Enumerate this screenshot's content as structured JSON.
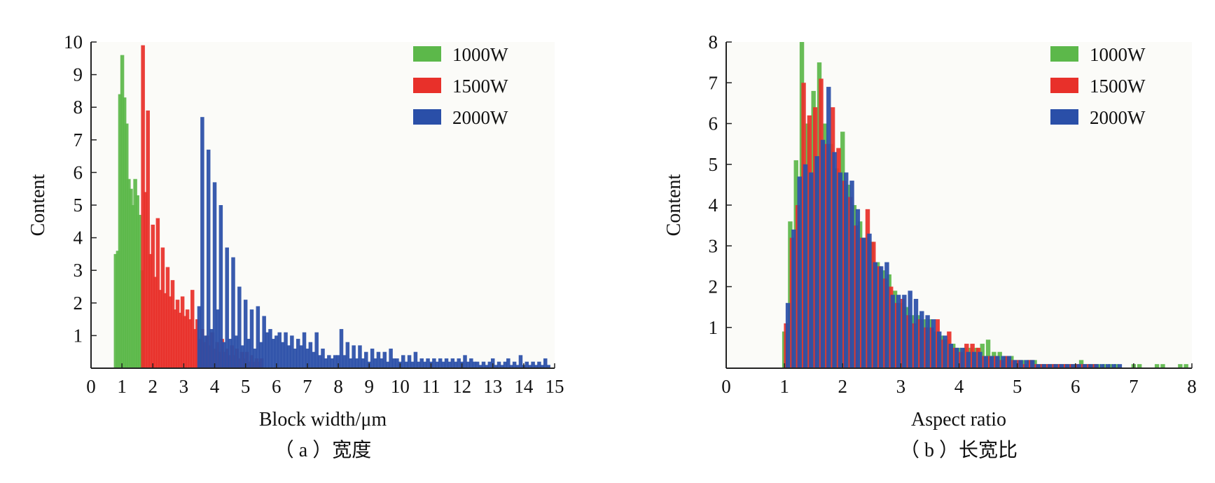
{
  "chart_data": [
    {
      "type": "bar",
      "title": "",
      "caption": "（ a ）宽度",
      "xlabel": "Block width/μm",
      "ylabel": "Content",
      "xlim": [
        0,
        15
      ],
      "ylim": [
        0,
        10
      ],
      "xticks": [
        "0",
        "1",
        "2",
        "3",
        "4",
        "5",
        "6",
        "7",
        "8",
        "9",
        "10",
        "11",
        "12",
        "13",
        "14",
        "15"
      ],
      "yticks": [
        "1",
        "2",
        "3",
        "4",
        "5",
        "6",
        "7",
        "8",
        "9",
        "10"
      ],
      "xtick_values": [
        0,
        1,
        2,
        3,
        4,
        5,
        6,
        7,
        8,
        9,
        10,
        11,
        12,
        13,
        14,
        15
      ],
      "ytick_values": [
        1,
        2,
        3,
        4,
        5,
        6,
        7,
        8,
        9,
        10
      ],
      "legend_position": "top-right",
      "grid": false,
      "series": [
        {
          "name": "1000W",
          "color": "#5cb84a",
          "x": [
            0.8,
            0.87,
            0.94,
            1.01,
            1.08,
            1.15,
            1.22,
            1.29,
            1.36,
            1.43,
            1.5,
            1.57,
            1.64
          ],
          "values": [
            3.5,
            3.6,
            8.4,
            9.6,
            8.3,
            7.5,
            5.8,
            5.5,
            5.0,
            5.8,
            5.3,
            4.7,
            3.0
          ]
        },
        {
          "name": "1500W",
          "color": "#e8302a",
          "x": [
            1.68,
            1.76,
            1.84,
            1.92,
            2.0,
            2.08,
            2.16,
            2.24,
            2.32,
            2.4,
            2.48,
            2.56,
            2.64,
            2.72,
            2.8,
            2.88,
            2.96,
            3.04,
            3.12,
            3.2,
            3.28,
            3.36,
            3.44,
            3.52,
            3.6,
            3.68,
            3.76,
            3.84,
            3.92,
            4.0,
            4.08,
            4.16,
            4.24,
            4.32,
            4.4,
            4.48,
            4.56,
            4.64,
            4.72,
            4.8,
            4.88,
            4.96,
            5.04,
            5.12,
            5.2,
            5.28,
            5.36,
            5.44,
            5.52
          ],
          "values": [
            9.9,
            5.4,
            7.9,
            3.5,
            4.4,
            2.8,
            4.6,
            2.4,
            3.7,
            2.3,
            3.1,
            2.2,
            2.7,
            1.8,
            2.1,
            1.7,
            2.2,
            1.6,
            1.8,
            1.5,
            2.4,
            1.2,
            1.5,
            0.9,
            1.2,
            0.8,
            1.0,
            0.7,
            1.1,
            0.6,
            0.8,
            0.5,
            0.9,
            0.5,
            0.6,
            0.4,
            0.7,
            0.4,
            0.6,
            0.3,
            0.5,
            0.3,
            0.5,
            0.2,
            0.4,
            0.2,
            0.3,
            0.2,
            0.3
          ]
        },
        {
          "name": "2000W",
          "color": "#2a4fa8",
          "x": [
            3.5,
            3.6,
            3.7,
            3.8,
            3.9,
            4.0,
            4.1,
            4.2,
            4.3,
            4.4,
            4.5,
            4.6,
            4.7,
            4.8,
            4.9,
            5.0,
            5.1,
            5.2,
            5.3,
            5.4,
            5.5,
            5.6,
            5.7,
            5.8,
            5.9,
            6.0,
            6.1,
            6.2,
            6.3,
            6.4,
            6.5,
            6.6,
            6.7,
            6.8,
            6.9,
            7.0,
            7.1,
            7.2,
            7.3,
            7.4,
            7.5,
            7.6,
            7.7,
            7.8,
            7.9,
            8.0,
            8.1,
            8.2,
            8.3,
            8.4,
            8.5,
            8.6,
            8.7,
            8.8,
            8.9,
            9.0,
            9.1,
            9.2,
            9.3,
            9.4,
            9.5,
            9.6,
            9.7,
            9.8,
            9.9,
            10.0,
            10.1,
            10.2,
            10.3,
            10.4,
            10.5,
            10.6,
            10.7,
            10.8,
            10.9,
            11.0,
            11.1,
            11.2,
            11.3,
            11.4,
            11.5,
            11.6,
            11.7,
            11.8,
            11.9,
            12.0,
            12.1,
            12.2,
            12.3,
            12.4,
            12.5,
            12.6,
            12.7,
            12.8,
            12.9,
            13.0,
            13.1,
            13.2,
            13.3,
            13.4,
            13.5,
            13.6,
            13.7,
            13.8,
            13.9,
            14.0,
            14.1,
            14.2,
            14.3,
            14.4,
            14.5,
            14.6,
            14.7,
            14.8
          ],
          "values": [
            1.9,
            7.7,
            1.0,
            6.7,
            1.2,
            5.7,
            1.8,
            5.0,
            0.8,
            3.7,
            0.9,
            3.4,
            1.0,
            2.5,
            0.7,
            2.1,
            0.9,
            1.8,
            0.6,
            1.9,
            0.8,
            1.6,
            1.1,
            1.2,
            0.9,
            1.0,
            1.1,
            0.8,
            1.1,
            0.7,
            1.0,
            0.6,
            0.9,
            0.7,
            1.1,
            0.6,
            0.8,
            0.5,
            1.1,
            0.4,
            0.6,
            0.3,
            0.4,
            0.3,
            0.4,
            0.4,
            1.2,
            0.4,
            0.8,
            0.3,
            0.7,
            0.3,
            0.7,
            0.3,
            0.5,
            0.2,
            0.6,
            0.3,
            0.5,
            0.3,
            0.5,
            0.2,
            0.6,
            0.3,
            0.3,
            0.2,
            0.4,
            0.2,
            0.4,
            0.2,
            0.5,
            0.2,
            0.3,
            0.2,
            0.3,
            0.2,
            0.3,
            0.2,
            0.3,
            0.2,
            0.3,
            0.2,
            0.3,
            0.2,
            0.3,
            0.2,
            0.4,
            0.2,
            0.3,
            0.2,
            0.2,
            0.1,
            0.2,
            0.1,
            0.2,
            0.3,
            0.1,
            0.2,
            0.1,
            0.2,
            0.3,
            0.1,
            0.2,
            0.1,
            0.4,
            0.1,
            0.2,
            0.1,
            0.2,
            0.1,
            0.2,
            0.1,
            0.3,
            0.1
          ]
        }
      ]
    },
    {
      "type": "bar",
      "title": "",
      "caption": "（ b ）长宽比",
      "xlabel": "Aspect ratio",
      "ylabel": "Content",
      "xlim": [
        0,
        8
      ],
      "ylim": [
        0,
        8
      ],
      "xticks": [
        "0",
        "1",
        "2",
        "3",
        "4",
        "5",
        "6",
        "7",
        "8"
      ],
      "yticks": [
        "1",
        "2",
        "3",
        "4",
        "5",
        "6",
        "7",
        "8"
      ],
      "xtick_values": [
        0,
        1,
        2,
        3,
        4,
        5,
        6,
        7,
        8
      ],
      "ytick_values": [
        1,
        2,
        3,
        4,
        5,
        6,
        7,
        8
      ],
      "legend_position": "top-right",
      "grid": false,
      "series": [
        {
          "name": "1000W",
          "color": "#5cb84a",
          "x": [
            1.0,
            1.1,
            1.2,
            1.3,
            1.4,
            1.5,
            1.6,
            1.7,
            1.8,
            1.9,
            2.0,
            2.1,
            2.2,
            2.3,
            2.4,
            2.5,
            2.6,
            2.7,
            2.8,
            2.9,
            3.0,
            3.1,
            3.2,
            3.3,
            3.4,
            3.5,
            3.6,
            3.7,
            3.8,
            3.9,
            4.0,
            4.1,
            4.2,
            4.3,
            4.4,
            4.5,
            4.6,
            4.7,
            4.8,
            4.9,
            5.0,
            5.1,
            5.2,
            5.3,
            5.4,
            5.5,
            5.6,
            5.7,
            5.8,
            5.9,
            6.0,
            6.1,
            6.2,
            6.3,
            6.4,
            6.5,
            6.6,
            6.7,
            6.8,
            6.9,
            7.0,
            7.1,
            7.2,
            7.3,
            7.4,
            7.5,
            7.6,
            7.7,
            7.8,
            7.9
          ],
          "values": [
            0.9,
            3.6,
            5.1,
            8.0,
            6.0,
            6.8,
            7.5,
            6.0,
            5.5,
            4.9,
            5.8,
            4.5,
            4.0,
            3.6,
            3.2,
            3.1,
            2.6,
            2.4,
            2.3,
            1.9,
            1.6,
            1.5,
            1.3,
            1.3,
            1.2,
            1.2,
            0.9,
            0.8,
            0.7,
            0.6,
            0.5,
            0.5,
            0.5,
            0.5,
            0.6,
            0.7,
            0.4,
            0.4,
            0.3,
            0.3,
            0.2,
            0.2,
            0.2,
            0.2,
            0.1,
            0.1,
            0.1,
            0.1,
            0.1,
            0.1,
            0.1,
            0.2,
            0.1,
            0.1,
            0.1,
            0.1,
            0.1,
            0.1,
            0.0,
            0.0,
            0.1,
            0.1,
            0.0,
            0.0,
            0.1,
            0.1,
            0.0,
            0.0,
            0.1,
            0.1
          ]
        },
        {
          "name": "1500W",
          "color": "#e8302a",
          "x": [
            1.03,
            1.13,
            1.23,
            1.33,
            1.43,
            1.53,
            1.63,
            1.73,
            1.83,
            1.93,
            2.03,
            2.13,
            2.23,
            2.33,
            2.43,
            2.53,
            2.63,
            2.73,
            2.83,
            2.93,
            3.03,
            3.13,
            3.23,
            3.33,
            3.43,
            3.53,
            3.63,
            3.73,
            3.83,
            3.93,
            4.03,
            4.13,
            4.23,
            4.33,
            4.43,
            4.53,
            4.63,
            4.73,
            4.83,
            4.93,
            5.03,
            5.13,
            5.23,
            5.33,
            5.43,
            5.53,
            5.63,
            5.73,
            5.83,
            5.93,
            6.03,
            6.13,
            6.23,
            6.33
          ],
          "values": [
            1.1,
            3.2,
            4.0,
            7.0,
            6.2,
            6.4,
            7.1,
            5.5,
            6.4,
            5.4,
            4.6,
            4.2,
            3.5,
            3.2,
            3.9,
            3.1,
            2.5,
            2.2,
            2.0,
            1.6,
            1.7,
            1.3,
            1.1,
            1.2,
            1.0,
            1.0,
            1.2,
            0.7,
            0.9,
            0.5,
            0.4,
            0.6,
            0.6,
            0.5,
            0.3,
            0.3,
            0.3,
            0.2,
            0.3,
            0.2,
            0.2,
            0.1,
            0.2,
            0.1,
            0.1,
            0.1,
            0.1,
            0.1,
            0.1,
            0.1,
            0.1,
            0.1,
            0.1,
            0.1
          ]
        },
        {
          "name": "2000W",
          "color": "#2a4fa8",
          "x": [
            1.06,
            1.16,
            1.26,
            1.36,
            1.46,
            1.56,
            1.66,
            1.76,
            1.86,
            1.96,
            2.06,
            2.16,
            2.26,
            2.36,
            2.46,
            2.56,
            2.66,
            2.76,
            2.86,
            2.96,
            3.06,
            3.16,
            3.26,
            3.36,
            3.46,
            3.56,
            3.66,
            3.76,
            3.86,
            3.96,
            4.06,
            4.16,
            4.26,
            4.36,
            4.46,
            4.56,
            4.66,
            4.76,
            4.86,
            4.96,
            5.06,
            5.16,
            5.26,
            5.36,
            5.46,
            5.56,
            5.66,
            5.76,
            5.86,
            5.96,
            6.06,
            6.16,
            6.26,
            6.36,
            6.46,
            6.56,
            6.66,
            6.76
          ],
          "values": [
            1.6,
            3.4,
            4.7,
            5.0,
            4.8,
            5.2,
            5.6,
            6.9,
            5.3,
            4.8,
            4.8,
            4.6,
            3.9,
            3.2,
            3.3,
            2.6,
            2.5,
            2.6,
            1.8,
            1.8,
            1.8,
            1.9,
            1.7,
            1.4,
            1.3,
            1.2,
            0.9,
            0.8,
            0.6,
            0.5,
            0.5,
            0.4,
            0.4,
            0.4,
            0.3,
            0.3,
            0.3,
            0.3,
            0.3,
            0.2,
            0.2,
            0.2,
            0.2,
            0.1,
            0.1,
            0.1,
            0.1,
            0.1,
            0.1,
            0.1,
            0.1,
            0.1,
            0.1,
            0.1,
            0.1,
            0.1,
            0.1,
            0.1
          ]
        }
      ]
    }
  ]
}
